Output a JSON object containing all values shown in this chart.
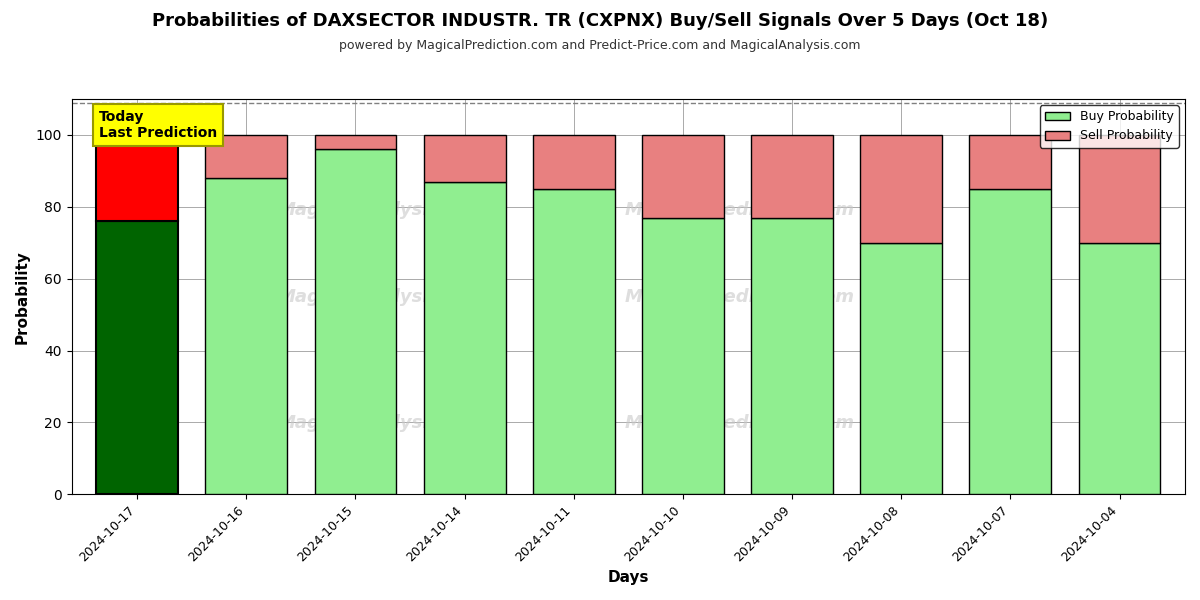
{
  "title": "Probabilities of DAXSECTOR INDUSTR. TR (CXPNX) Buy/Sell Signals Over 5 Days (Oct 18)",
  "subtitle": "powered by MagicalPrediction.com and Predict-Price.com and MagicalAnalysis.com",
  "xlabel": "Days",
  "ylabel": "Probability",
  "dates": [
    "2024-10-17",
    "2024-10-16",
    "2024-10-15",
    "2024-10-14",
    "2024-10-11",
    "2024-10-10",
    "2024-10-09",
    "2024-10-08",
    "2024-10-07",
    "2024-10-04"
  ],
  "buy_values": [
    76,
    88,
    96,
    87,
    85,
    77,
    77,
    70,
    85,
    70
  ],
  "sell_values": [
    24,
    12,
    4,
    13,
    15,
    23,
    23,
    30,
    15,
    30
  ],
  "today_bar_buy_color": "#006400",
  "today_bar_sell_color": "#FF0000",
  "normal_bar_buy_color": "#90EE90",
  "normal_bar_sell_color": "#E88080",
  "bar_edgecolor": "#000000",
  "today_annotation_bg": "#FFFF00",
  "today_annotation_text": "Today\nLast Prediction",
  "legend_buy_label": "Buy Probability",
  "legend_sell_label": "Sell Probability",
  "ylim": [
    0,
    110
  ],
  "yticks": [
    0,
    20,
    40,
    60,
    80,
    100
  ],
  "dashed_line_y": 109,
  "background_color": "#ffffff",
  "grid_color": "#aaaaaa",
  "bar_width": 0.75
}
